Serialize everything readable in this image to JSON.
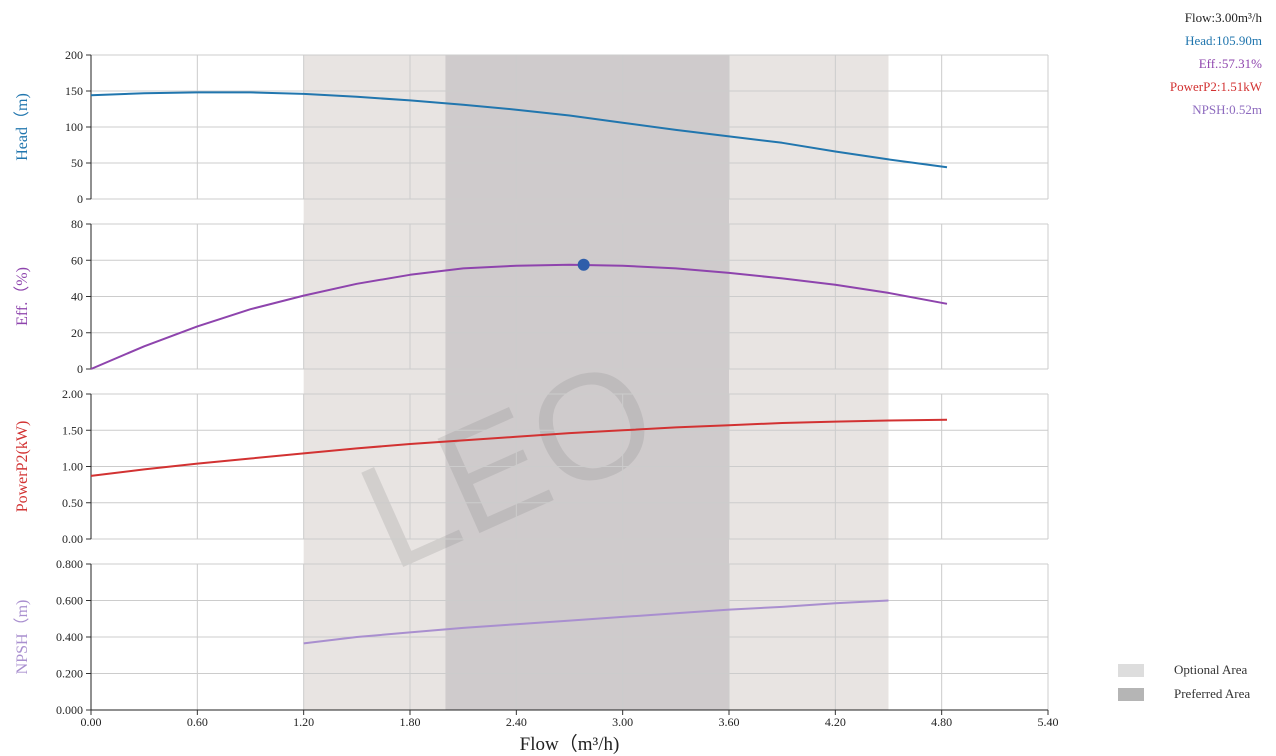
{
  "colors": {
    "head": "#2176ae",
    "eff": "#8e44ad",
    "power": "#d23232",
    "npsh": "#a98fcf",
    "optional": "#e8e4e2",
    "preferred": "#cfcbcc",
    "grid": "#cccccc",
    "marker": "#2e5eaa",
    "flow_text": "#222222",
    "watermark": "#7f7f7f"
  },
  "readout": {
    "flow": "Flow:3.00m³/h",
    "head": "Head:105.90m",
    "eff": "Eff.:57.31%",
    "power": "PowerP2:1.51kW",
    "npsh": "NPSH:0.52m"
  },
  "legend": {
    "optional": "Optional Area",
    "preferred": "Preferred Area"
  },
  "watermark": "LEO",
  "chart_data": {
    "type": "line",
    "xlabel": "Flow（m³/h)",
    "xlim": [
      0,
      5.4
    ],
    "xticks": [
      "0.00",
      "0.60",
      "1.20",
      "1.80",
      "2.40",
      "3.00",
      "3.60",
      "4.20",
      "4.80",
      "5.40"
    ],
    "optional_area": [
      1.2,
      4.5
    ],
    "preferred_area": [
      2.0,
      3.6
    ],
    "panels": [
      {
        "id": "head",
        "ylabel": "Head（m)",
        "ylim": [
          0,
          200
        ],
        "yticks": [
          "0",
          "50",
          "100",
          "150",
          "200"
        ],
        "series": {
          "x": [
            0,
            0.3,
            0.6,
            0.9,
            1.2,
            1.5,
            1.8,
            2.1,
            2.4,
            2.7,
            3.0,
            3.3,
            3.6,
            3.9,
            4.2,
            4.5,
            4.83
          ],
          "y": [
            144,
            147,
            148,
            148,
            146,
            142,
            137,
            131,
            124,
            116,
            106,
            96,
            87,
            78,
            66,
            55,
            44
          ]
        }
      },
      {
        "id": "eff",
        "ylabel": "Eff.（%)",
        "ylim": [
          0,
          80
        ],
        "yticks": [
          "0",
          "20",
          "40",
          "60",
          "80"
        ],
        "marker": {
          "x": 2.78,
          "y": 57.5
        },
        "series": {
          "x": [
            0,
            0.3,
            0.6,
            0.9,
            1.2,
            1.5,
            1.8,
            2.1,
            2.4,
            2.7,
            3.0,
            3.3,
            3.6,
            3.9,
            4.2,
            4.5,
            4.83
          ],
          "y": [
            0,
            12.5,
            23.5,
            33,
            40.5,
            47,
            52,
            55.5,
            57,
            57.5,
            57,
            55.5,
            53,
            50,
            46.5,
            42,
            36
          ]
        }
      },
      {
        "id": "power",
        "ylabel": "PowerP2(kW)",
        "ylim": [
          0,
          2
        ],
        "yticks": [
          "0.00",
          "0.50",
          "1.00",
          "1.50",
          "2.00"
        ],
        "series": {
          "x": [
            0,
            0.3,
            0.6,
            0.9,
            1.2,
            1.5,
            1.8,
            2.1,
            2.4,
            2.7,
            3.0,
            3.3,
            3.6,
            3.9,
            4.2,
            4.5,
            4.83
          ],
          "y": [
            0.87,
            0.96,
            1.04,
            1.11,
            1.18,
            1.25,
            1.31,
            1.36,
            1.41,
            1.46,
            1.5,
            1.54,
            1.57,
            1.6,
            1.62,
            1.635,
            1.645
          ]
        }
      },
      {
        "id": "npsh",
        "ylabel": "NPSH（m)",
        "ylim": [
          0,
          0.8
        ],
        "yticks": [
          "0.000",
          "0.200",
          "0.400",
          "0.600",
          "0.800"
        ],
        "series": {
          "x": [
            1.2,
            1.5,
            1.8,
            2.1,
            2.4,
            2.7,
            3.0,
            3.3,
            3.6,
            3.9,
            4.2,
            4.5
          ],
          "y": [
            0.365,
            0.4,
            0.425,
            0.45,
            0.47,
            0.49,
            0.51,
            0.53,
            0.55,
            0.565,
            0.585,
            0.6
          ]
        }
      }
    ]
  }
}
